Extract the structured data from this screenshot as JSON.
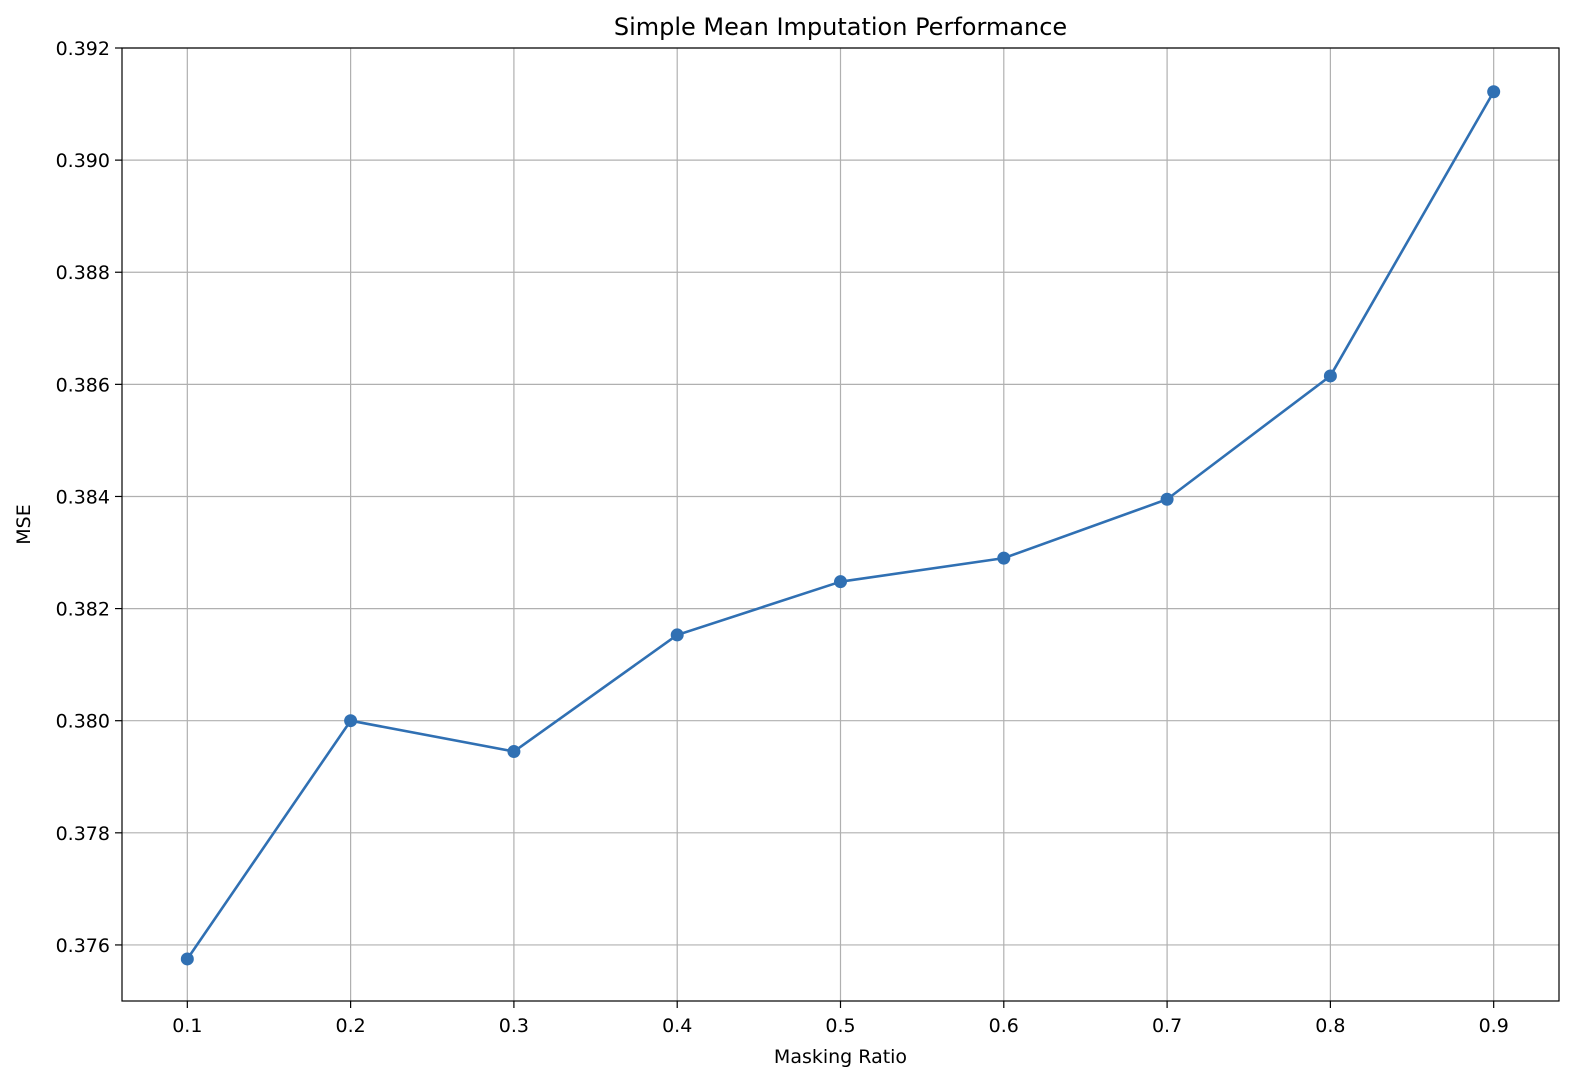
{
  "chart_data": {
    "type": "line",
    "title": "Simple Mean Imputation Performance",
    "xlabel": "Masking Ratio",
    "ylabel": "MSE",
    "x": [
      0.1,
      0.2,
      0.3,
      0.4,
      0.5,
      0.6,
      0.7,
      0.8,
      0.9
    ],
    "x_tick_labels": [
      "0.1",
      "0.2",
      "0.3",
      "0.4",
      "0.5",
      "0.6",
      "0.7",
      "0.8",
      "0.9"
    ],
    "y_ticks": [
      0.376,
      0.378,
      0.38,
      0.382,
      0.384,
      0.386,
      0.388,
      0.39,
      0.392
    ],
    "y_tick_labels": [
      "0.376",
      "0.378",
      "0.380",
      "0.382",
      "0.384",
      "0.386",
      "0.388",
      "0.390",
      "0.392"
    ],
    "xlim": [
      0.06,
      0.94
    ],
    "ylim": [
      0.375,
      0.392
    ],
    "grid": true,
    "series": [
      {
        "values": [
          0.37575,
          0.38,
          0.37945,
          0.38153,
          0.38248,
          0.3829,
          0.38395,
          0.38615,
          0.39122
        ],
        "color": "#3070b3",
        "marker": "circle"
      }
    ]
  }
}
